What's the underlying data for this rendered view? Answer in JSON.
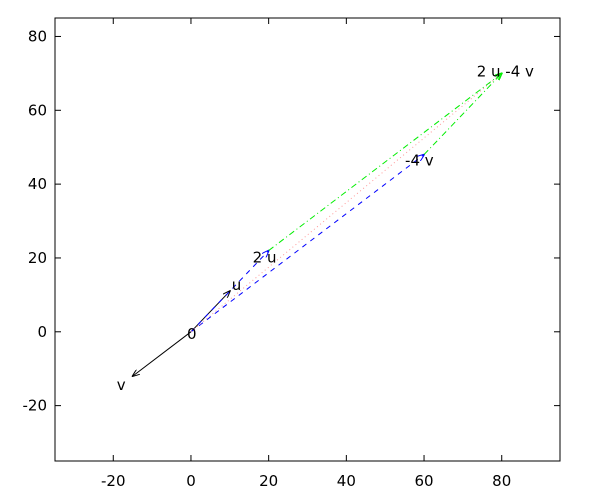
{
  "chart_data": {
    "type": "line",
    "title": "",
    "xlabel": "",
    "ylabel": "",
    "xlim": [
      -35,
      95
    ],
    "ylim": [
      -35,
      85
    ],
    "grid": false,
    "x_ticks": [
      -20,
      0,
      20,
      40,
      60,
      80
    ],
    "y_ticks": [
      -20,
      0,
      20,
      40,
      60,
      80
    ],
    "points": [
      {
        "label": "0",
        "x": 0,
        "y": 0
      },
      {
        "label": "u",
        "x": 10,
        "y": 11
      },
      {
        "label": "v",
        "x": -15,
        "y": -12
      },
      {
        "label": "2 u",
        "x": 20,
        "y": 22
      },
      {
        "label": "-4 v",
        "x": 60,
        "y": 48
      },
      {
        "label": "2 u -4 v",
        "x": 80,
        "y": 70
      }
    ],
    "segments": [
      {
        "from": [
          0,
          0
        ],
        "to": [
          10,
          11
        ],
        "color": "#000000",
        "style": "solid",
        "arrow": true
      },
      {
        "from": [
          0,
          0
        ],
        "to": [
          -15,
          -12
        ],
        "color": "#000000",
        "style": "solid",
        "arrow": true
      },
      {
        "from": [
          0,
          0
        ],
        "to": [
          20,
          22
        ],
        "color": "#0000ff",
        "style": "dashed",
        "arrow": true
      },
      {
        "from": [
          0,
          0
        ],
        "to": [
          60,
          48
        ],
        "color": "#0000ff",
        "style": "dashed",
        "arrow": true
      },
      {
        "from": [
          0,
          0
        ],
        "to": [
          80,
          70
        ],
        "color": "#ff9999",
        "style": "dotted",
        "arrow": false
      },
      {
        "from": [
          20,
          22
        ],
        "to": [
          80,
          70
        ],
        "color": "#00ee00",
        "style": "dashdot",
        "arrow": true
      },
      {
        "from": [
          60,
          48
        ],
        "to": [
          80,
          70
        ],
        "color": "#00ee00",
        "style": "dashdot",
        "arrow": true
      }
    ]
  }
}
